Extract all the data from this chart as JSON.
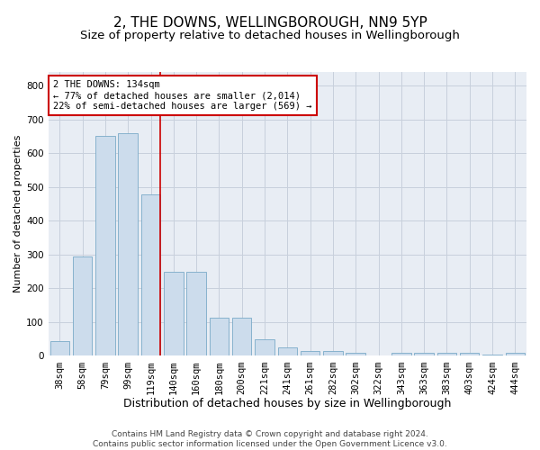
{
  "title1": "2, THE DOWNS, WELLINGBOROUGH, NN9 5YP",
  "title2": "Size of property relative to detached houses in Wellingborough",
  "xlabel": "Distribution of detached houses by size in Wellingborough",
  "ylabel": "Number of detached properties",
  "categories": [
    "38sqm",
    "58sqm",
    "79sqm",
    "99sqm",
    "119sqm",
    "140sqm",
    "160sqm",
    "180sqm",
    "200sqm",
    "221sqm",
    "241sqm",
    "261sqm",
    "282sqm",
    "302sqm",
    "322sqm",
    "343sqm",
    "363sqm",
    "383sqm",
    "403sqm",
    "424sqm",
    "444sqm"
  ],
  "values": [
    45,
    293,
    650,
    660,
    478,
    250,
    250,
    113,
    113,
    50,
    25,
    15,
    15,
    8,
    0,
    8,
    8,
    8,
    8,
    5,
    8
  ],
  "bar_color": "#ccdcec",
  "bar_edge_color": "#7aaac8",
  "annotation_text1": "2 THE DOWNS: 134sqm",
  "annotation_text2": "← 77% of detached houses are smaller (2,014)",
  "annotation_text3": "22% of semi-detached houses are larger (569) →",
  "annotation_box_color": "#ffffff",
  "annotation_box_edge": "#cc0000",
  "vline_color": "#cc0000",
  "grid_color": "#c8d0dc",
  "background_color": "#e8edf4",
  "footer1": "Contains HM Land Registry data © Crown copyright and database right 2024.",
  "footer2": "Contains public sector information licensed under the Open Government Licence v3.0.",
  "ylim": [
    0,
    840
  ],
  "yticks": [
    0,
    100,
    200,
    300,
    400,
    500,
    600,
    700,
    800
  ],
  "title1_fontsize": 11,
  "title2_fontsize": 9.5,
  "xlabel_fontsize": 9,
  "ylabel_fontsize": 8,
  "tick_fontsize": 7.5,
  "annotation_fontsize": 7.5,
  "footer_fontsize": 6.5,
  "vline_bin_index": 4,
  "bar_width": 0.85
}
